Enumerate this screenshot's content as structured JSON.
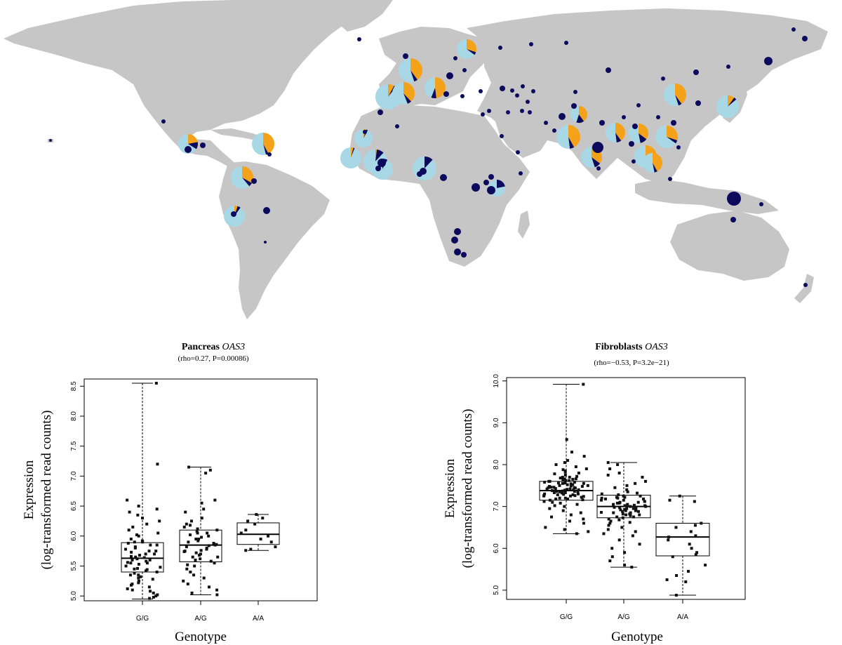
{
  "colors": {
    "land": "#c6c6c6",
    "allele_navy": "#0b0a5c",
    "allele_lightblue": "#a8d8e6",
    "allele_orange": "#f4a21a",
    "box_fill": "#ffffff",
    "point": "#111111"
  },
  "map": {
    "pies": [
      {
        "x": 665,
        "y": 70,
        "r": 14,
        "navy": 0.05,
        "orange": 0.3
      },
      {
        "x": 585,
        "y": 100,
        "r": 17,
        "navy": 0.05,
        "orange": 0.4
      },
      {
        "x": 553,
        "y": 138,
        "r": 18,
        "navy": 0.03,
        "orange": 0.08
      },
      {
        "x": 575,
        "y": 133,
        "r": 16,
        "navy": 0.06,
        "orange": 0.38
      },
      {
        "x": 620,
        "y": 125,
        "r": 15,
        "navy": 0.08,
        "orange": 0.48
      },
      {
        "x": 962,
        "y": 135,
        "r": 16,
        "navy": 0.05,
        "orange": 0.4
      },
      {
        "x": 1037,
        "y": 152,
        "r": 16,
        "navy": 0.04,
        "orange": 0.1
      },
      {
        "x": 825,
        "y": 163,
        "r": 12,
        "navy": 0.15,
        "orange": 0.4
      },
      {
        "x": 810,
        "y": 195,
        "r": 17,
        "navy": 0.06,
        "orange": 0.42
      },
      {
        "x": 877,
        "y": 189,
        "r": 14,
        "navy": 0.08,
        "orange": 0.4
      },
      {
        "x": 910,
        "y": 190,
        "r": 14,
        "navy": 0.12,
        "orange": 0.35
      },
      {
        "x": 950,
        "y": 195,
        "r": 16,
        "navy": 0.05,
        "orange": 0.3
      },
      {
        "x": 843,
        "y": 224,
        "r": 15,
        "navy": 0.1,
        "orange": 0.35
      },
      {
        "x": 920,
        "y": 223,
        "r": 16,
        "navy": 0.08,
        "orange": 0.38
      },
      {
        "x": 930,
        "y": 232,
        "r": 14,
        "navy": 0.05,
        "orange": 0.42
      },
      {
        "x": 518,
        "y": 197,
        "r": 13,
        "navy": 0.03,
        "orange": 0.05
      },
      {
        "x": 500,
        "y": 225,
        "r": 15,
        "navy": 0.02,
        "orange": 0.04
      },
      {
        "x": 535,
        "y": 230,
        "r": 17,
        "navy": 0.1,
        "orange": 0.02
      },
      {
        "x": 545,
        "y": 241,
        "r": 15,
        "navy": 0.08,
        "orange": 0.0
      },
      {
        "x": 605,
        "y": 240,
        "r": 17,
        "navy": 0.12,
        "orange": 0.0
      },
      {
        "x": 708,
        "y": 268,
        "r": 12,
        "navy": 0.22,
        "orange": 0.0
      },
      {
        "x": 268,
        "y": 205,
        "r": 14,
        "navy": 0.12,
        "orange": 0.22
      },
      {
        "x": 375,
        "y": 205,
        "r": 16,
        "navy": 0.04,
        "orange": 0.42
      },
      {
        "x": 345,
        "y": 253,
        "r": 16,
        "navy": 0.06,
        "orange": 0.33
      },
      {
        "x": 334,
        "y": 308,
        "r": 15,
        "navy": 0.05,
        "orange": 0.05
      }
    ],
    "dots": [
      {
        "x": 1131,
        "y": 42,
        "r": 3
      },
      {
        "x": 1147,
        "y": 55,
        "r": 4
      },
      {
        "x": 1095,
        "y": 87,
        "r": 6
      },
      {
        "x": 512,
        "y": 56,
        "r": 3
      },
      {
        "x": 713,
        "y": 68,
        "r": 3
      },
      {
        "x": 757,
        "y": 63,
        "r": 3
      },
      {
        "x": 807,
        "y": 61,
        "r": 3
      },
      {
        "x": 649,
        "y": 83,
        "r": 3
      },
      {
        "x": 578,
        "y": 80,
        "r": 4
      },
      {
        "x": 662,
        "y": 100,
        "r": 3
      },
      {
        "x": 641,
        "y": 108,
        "r": 5
      },
      {
        "x": 636,
        "y": 134,
        "r": 4
      },
      {
        "x": 659,
        "y": 137,
        "r": 3
      },
      {
        "x": 685,
        "y": 130,
        "r": 3
      },
      {
        "x": 716,
        "y": 126,
        "r": 4
      },
      {
        "x": 730,
        "y": 129,
        "r": 3
      },
      {
        "x": 737,
        "y": 136,
        "r": 3
      },
      {
        "x": 745,
        "y": 123,
        "r": 3
      },
      {
        "x": 760,
        "y": 130,
        "r": 3
      },
      {
        "x": 820,
        "y": 131,
        "r": 3
      },
      {
        "x": 867,
        "y": 100,
        "r": 4
      },
      {
        "x": 992,
        "y": 103,
        "r": 4
      },
      {
        "x": 1038,
        "y": 95,
        "r": 3
      },
      {
        "x": 945,
        "y": 112,
        "r": 3
      },
      {
        "x": 995,
        "y": 147,
        "r": 4
      },
      {
        "x": 744,
        "y": 158,
        "r": 3
      },
      {
        "x": 752,
        "y": 145,
        "r": 3
      },
      {
        "x": 697,
        "y": 158,
        "r": 3
      },
      {
        "x": 688,
        "y": 163,
        "r": 3
      },
      {
        "x": 724,
        "y": 160,
        "r": 3
      },
      {
        "x": 755,
        "y": 160,
        "r": 3
      },
      {
        "x": 778,
        "y": 175,
        "r": 3
      },
      {
        "x": 801,
        "y": 166,
        "r": 5
      },
      {
        "x": 818,
        "y": 151,
        "r": 4
      },
      {
        "x": 790,
        "y": 186,
        "r": 3
      },
      {
        "x": 858,
        "y": 175,
        "r": 4
      },
      {
        "x": 889,
        "y": 167,
        "r": 3
      },
      {
        "x": 910,
        "y": 150,
        "r": 3
      },
      {
        "x": 938,
        "y": 167,
        "r": 3
      },
      {
        "x": 960,
        "y": 175,
        "r": 4
      },
      {
        "x": 905,
        "y": 180,
        "r": 4
      },
      {
        "x": 967,
        "y": 210,
        "r": 3
      },
      {
        "x": 900,
        "y": 205,
        "r": 4
      },
      {
        "x": 852,
        "y": 210,
        "r": 8
      },
      {
        "x": 903,
        "y": 230,
        "r": 3
      },
      {
        "x": 955,
        "y": 255,
        "r": 3
      },
      {
        "x": 853,
        "y": 240,
        "r": 3
      },
      {
        "x": 715,
        "y": 194,
        "r": 3
      },
      {
        "x": 738,
        "y": 217,
        "r": 3
      },
      {
        "x": 742,
        "y": 247,
        "r": 3
      },
      {
        "x": 700,
        "y": 252,
        "r": 4
      },
      {
        "x": 693,
        "y": 260,
        "r": 4
      },
      {
        "x": 678,
        "y": 267,
        "r": 6
      },
      {
        "x": 700,
        "y": 271,
        "r": 6
      },
      {
        "x": 632,
        "y": 253,
        "r": 5
      },
      {
        "x": 544,
        "y": 232,
        "r": 6
      },
      {
        "x": 539,
        "y": 240,
        "r": 4
      },
      {
        "x": 566,
        "y": 180,
        "r": 3
      },
      {
        "x": 520,
        "y": 188,
        "r": 3
      },
      {
        "x": 542,
        "y": 160,
        "r": 4
      },
      {
        "x": 603,
        "y": 244,
        "r": 5
      },
      {
        "x": 598,
        "y": 248,
        "r": 4
      },
      {
        "x": 652,
        "y": 330,
        "r": 5
      },
      {
        "x": 648,
        "y": 342,
        "r": 5
      },
      {
        "x": 652,
        "y": 359,
        "r": 5
      },
      {
        "x": 661,
        "y": 363,
        "r": 4
      },
      {
        "x": 1046,
        "y": 283,
        "r": 10
      },
      {
        "x": 1045,
        "y": 313,
        "r": 4
      },
      {
        "x": 1085,
        "y": 291,
        "r": 3
      },
      {
        "x": 1148,
        "y": 406,
        "r": 3
      },
      {
        "x": 233,
        "y": 173,
        "r": 3
      },
      {
        "x": 268,
        "y": 213,
        "r": 5
      },
      {
        "x": 289,
        "y": 207,
        "r": 4
      },
      {
        "x": 362,
        "y": 258,
        "r": 4
      },
      {
        "x": 333,
        "y": 305,
        "r": 4
      },
      {
        "x": 380,
        "y": 300,
        "r": 5
      },
      {
        "x": 378,
        "y": 345,
        "r": 2
      },
      {
        "x": 72,
        "y": 200,
        "r": 2
      },
      {
        "x": 384,
        "y": 220,
        "r": 3
      }
    ]
  },
  "chart_data": [
    {
      "type": "box",
      "title": "Pancreas",
      "title_gene": "OAS3",
      "subtitle": "(rho=0.27, P=0.00086)",
      "xlabel": "Genotype",
      "ylabel_line1": "Expression",
      "ylabel_line2": "(log-transformed read counts)",
      "categories": [
        "G/G",
        "A/G",
        "A/A"
      ],
      "ylim": [
        4.92,
        8.62
      ],
      "yticks": [
        5.0,
        5.5,
        6.0,
        6.5,
        7.0,
        7.5,
        8.0,
        8.5
      ],
      "ytick_labels": [
        "5.0",
        "5.5",
        "6.0",
        "6.5",
        "7.0",
        "7.5",
        "8.0",
        "8.5"
      ],
      "boxes": [
        {
          "min": 4.95,
          "q1": 5.4,
          "median": 5.63,
          "q3": 5.89,
          "max": 8.55,
          "points": [
            8.55,
            7.2,
            6.6,
            6.5,
            6.45,
            6.4,
            6.35,
            6.3,
            6.2,
            6.15,
            6.1,
            6.05,
            6.0,
            5.95,
            5.92,
            5.9,
            5.88,
            5.85,
            5.82,
            5.8,
            5.78,
            5.75,
            5.73,
            5.7,
            5.68,
            5.66,
            5.64,
            5.62,
            5.6,
            5.58,
            5.56,
            5.55,
            5.53,
            5.5,
            5.48,
            5.46,
            5.44,
            5.42,
            5.4,
            5.38,
            5.35,
            5.32,
            5.3,
            5.28,
            5.25,
            5.22,
            5.2,
            5.18,
            5.15,
            5.12,
            5.1,
            5.08,
            5.05,
            5.02,
            5.0,
            4.98,
            4.96,
            5.7,
            5.9,
            6.25,
            5.45,
            5.65,
            5.35,
            6.02,
            5.55,
            5.75,
            5.6,
            5.85
          ]
        },
        {
          "min": 5.02,
          "q1": 5.57,
          "median": 5.85,
          "q3": 6.1,
          "max": 7.15,
          "points": [
            7.15,
            7.1,
            7.05,
            6.6,
            6.55,
            6.45,
            6.4,
            6.3,
            6.25,
            6.2,
            6.18,
            6.15,
            6.12,
            6.1,
            6.08,
            6.05,
            6.02,
            6.0,
            5.98,
            5.95,
            5.92,
            5.9,
            5.88,
            5.86,
            5.84,
            5.82,
            5.8,
            5.78,
            5.76,
            5.74,
            5.72,
            5.7,
            5.68,
            5.65,
            5.62,
            5.6,
            5.58,
            5.55,
            5.52,
            5.5,
            5.45,
            5.4,
            5.35,
            5.3,
            5.25,
            5.2,
            5.15,
            5.1,
            5.05,
            5.02,
            5.95,
            5.75,
            6.05,
            5.85,
            5.65
          ]
        },
        {
          "min": 5.76,
          "q1": 5.86,
          "median": 6.03,
          "q3": 6.22,
          "max": 6.36,
          "points": [
            6.36,
            6.3,
            6.25,
            6.2,
            6.1,
            6.05,
            6.0,
            5.95,
            5.9,
            5.82,
            5.78,
            5.76
          ]
        }
      ]
    },
    {
      "type": "box",
      "title": "Fibroblasts",
      "title_gene": "OAS3",
      "subtitle": "(rho=−0.53, P=3.2e−21)",
      "xlabel": "Genotype",
      "ylabel_line1": "Expression",
      "ylabel_line2": "(log-transformed read counts)",
      "categories": [
        "G/G",
        "A/G",
        "A/A"
      ],
      "ylim": [
        4.78,
        10.08
      ],
      "yticks": [
        5.0,
        6.0,
        7.0,
        8.0,
        9.0,
        10.0
      ],
      "ytick_labels": [
        "5.0",
        "6.0",
        "7.0",
        "8.0",
        "9.0",
        "10.0"
      ],
      "boxes": [
        {
          "min": 6.35,
          "q1": 7.15,
          "median": 7.38,
          "q3": 7.6,
          "max": 9.92,
          "points": [
            9.92,
            8.6,
            8.3,
            8.2,
            8.1,
            8.05,
            8.0,
            7.95,
            7.9,
            7.88,
            7.85,
            7.82,
            7.8,
            7.78,
            7.75,
            7.72,
            7.7,
            7.68,
            7.66,
            7.64,
            7.62,
            7.6,
            7.58,
            7.56,
            7.55,
            7.54,
            7.52,
            7.5,
            7.49,
            7.48,
            7.46,
            7.45,
            7.44,
            7.42,
            7.41,
            7.4,
            7.39,
            7.38,
            7.37,
            7.36,
            7.35,
            7.34,
            7.33,
            7.32,
            7.3,
            7.29,
            7.28,
            7.26,
            7.25,
            7.24,
            7.22,
            7.2,
            7.18,
            7.16,
            7.15,
            7.12,
            7.1,
            7.08,
            7.05,
            7.02,
            7.0,
            6.95,
            6.9,
            6.85,
            6.8,
            6.75,
            6.7,
            6.65,
            6.6,
            6.5,
            6.45,
            6.4,
            6.35,
            7.45,
            7.55,
            7.35,
            7.65,
            7.25,
            7.5,
            7.4,
            7.3,
            7.6,
            7.2,
            7.7,
            7.42,
            7.38,
            7.48,
            7.52,
            7.28,
            7.58,
            7.33,
            7.43,
            7.62,
            7.18,
            7.66,
            7.36,
            7.46,
            7.56,
            7.26
          ]
        },
        {
          "min": 5.55,
          "q1": 6.73,
          "median": 7.0,
          "q3": 7.27,
          "max": 8.05,
          "points": [
            8.05,
            8.0,
            7.9,
            7.8,
            7.75,
            7.7,
            7.6,
            7.55,
            7.5,
            7.45,
            7.4,
            7.35,
            7.32,
            7.3,
            7.28,
            7.25,
            7.22,
            7.2,
            7.18,
            7.15,
            7.12,
            7.1,
            7.08,
            7.05,
            7.03,
            7.02,
            7.0,
            6.98,
            6.97,
            6.95,
            6.93,
            6.92,
            6.9,
            6.88,
            6.86,
            6.85,
            6.82,
            6.8,
            6.78,
            6.75,
            6.73,
            6.7,
            6.68,
            6.65,
            6.62,
            6.6,
            6.55,
            6.5,
            6.45,
            6.4,
            6.35,
            6.3,
            6.2,
            6.1,
            6.0,
            5.9,
            5.8,
            5.7,
            5.6,
            5.55,
            7.0,
            7.1,
            6.9,
            7.2,
            6.8,
            7.05,
            6.95,
            7.15,
            6.85,
            7.25,
            6.75,
            7.02,
            6.98,
            7.08,
            6.92,
            7.12,
            6.88,
            7.18,
            6.82,
            7.22
          ]
        },
        {
          "min": 4.88,
          "q1": 5.82,
          "median": 6.27,
          "q3": 6.6,
          "max": 7.25,
          "points": [
            7.25,
            7.15,
            7.12,
            6.6,
            6.55,
            6.5,
            6.4,
            6.3,
            6.27,
            6.2,
            6.1,
            6.0,
            5.9,
            5.85,
            5.8,
            5.6,
            5.45,
            5.35,
            5.25,
            5.2,
            4.88
          ]
        }
      ]
    }
  ]
}
